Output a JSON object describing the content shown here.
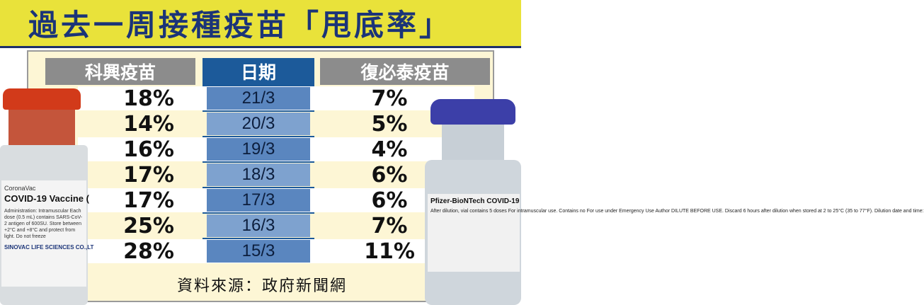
{
  "title": "過去一周接種疫苗「甩底率」",
  "source": "資料來源：政府新聞網",
  "colors": {
    "title_bg": "#e9e23a",
    "title_text": "#1b3478",
    "header_gray": "#8c8c8c",
    "date_blue": "#1c5a9a",
    "panel_cream": "#fdf6d5"
  },
  "chart_data": {
    "type": "table",
    "columns": [
      "科興疫苗",
      "日期",
      "復必泰疫苗"
    ],
    "rows": [
      {
        "sinovac": "18%",
        "date": "21/3",
        "biontech": "7%"
      },
      {
        "sinovac": "14%",
        "date": "20/3",
        "biontech": "5%"
      },
      {
        "sinovac": "16%",
        "date": "19/3",
        "biontech": "4%"
      },
      {
        "sinovac": "17%",
        "date": "18/3",
        "biontech": "6%"
      },
      {
        "sinovac": "17%",
        "date": "17/3",
        "biontech": "6%"
      },
      {
        "sinovac": "25%",
        "date": "16/3",
        "biontech": "7%"
      },
      {
        "sinovac": "28%",
        "date": "15/3",
        "biontech": "11%"
      }
    ]
  },
  "vial_left": {
    "brand": "CoronaVac",
    "name": "COVID-19 Vaccine (",
    "details": "Administration: Intramuscular Each dose (0.5 mL) contains SARS-CoV-2 antigen of 600SU. Store between +2°C and +8°C and protect from light. Do not freeze",
    "maker": "SINOVAC LIFE SCIENCES CO.,LT"
  },
  "vial_right": {
    "name": "Pfizer-BioNTech COVID-19",
    "details": "After dilution, vial contains 5 doses For intramuscular use. Contains no For use under Emergency Use Author DILUTE BEFORE USE. Discard 6 hours after dilution when stored at 2 to 25°C (35 to 77°F). Dilution date and time:"
  }
}
